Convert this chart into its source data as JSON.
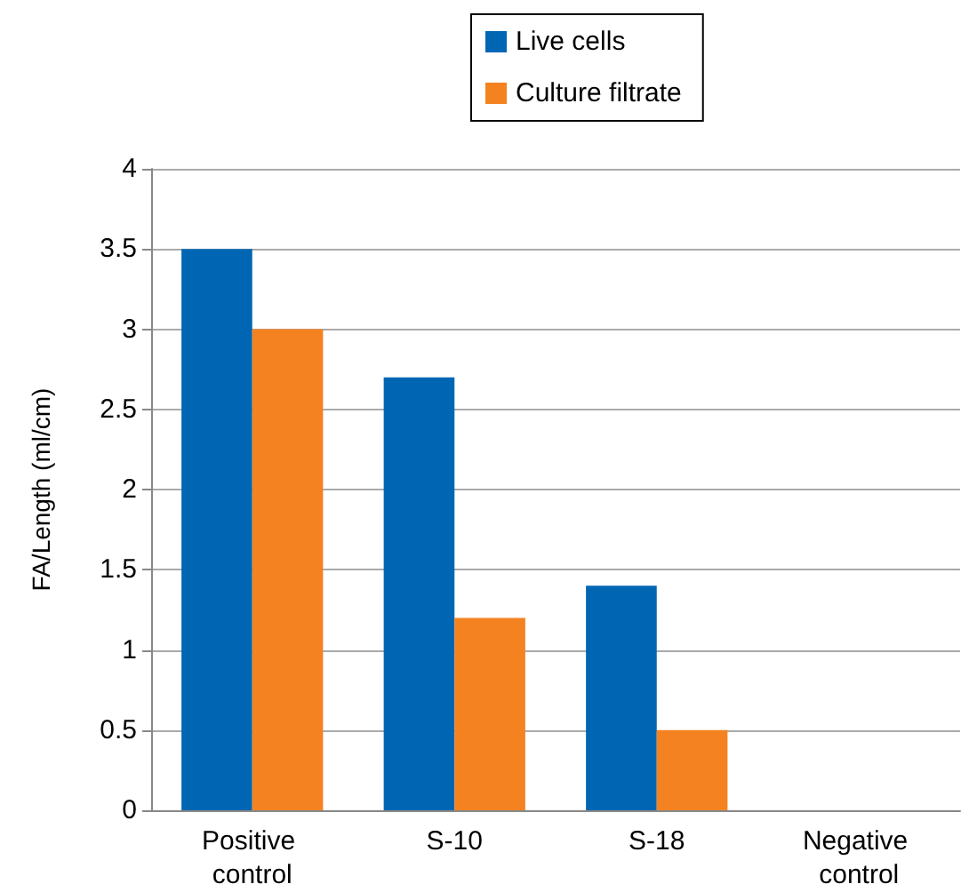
{
  "chart_data": {
    "type": "bar",
    "ylabel": "FA/Length (ml/cm)",
    "categories": [
      "Positive control",
      "S-10",
      "S-18",
      "Negative control"
    ],
    "series": [
      {
        "name": "Live cells",
        "color": "#0066b3",
        "values": [
          3.5,
          2.7,
          1.4,
          0
        ]
      },
      {
        "name": "Culture filtrate",
        "color": "#f58220",
        "values": [
          3.0,
          1.2,
          0.5,
          0
        ]
      }
    ],
    "ylim": [
      0,
      4
    ],
    "yticks": [
      0,
      0.5,
      1,
      1.5,
      2,
      2.5,
      3,
      3.5,
      4
    ],
    "grid": "y",
    "legend": "top"
  }
}
